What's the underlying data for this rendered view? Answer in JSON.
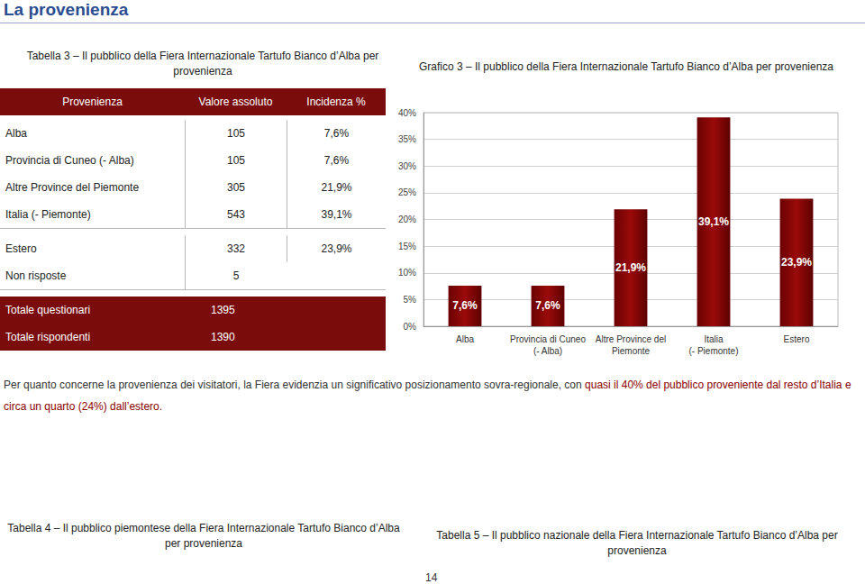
{
  "page_title": "La provenienza",
  "table_caption": "Tabella 3 – Il pubblico della Fiera Internazionale Tartufo Bianco d’Alba per provenienza",
  "table": {
    "header": [
      "Provenienza",
      "Valore assoluto",
      "Incidenza %"
    ],
    "rows": [
      [
        "Alba",
        "105",
        "7,6%"
      ],
      [
        "Provincia di Cuneo (- Alba)",
        "105",
        "7,6%"
      ],
      [
        "Altre Province del Piemonte",
        "305",
        "21,9%"
      ],
      [
        "Italia (- Piemonte)",
        "543",
        "39,1%"
      ],
      [
        "Estero",
        "332",
        "23,9%"
      ],
      [
        "Non risposte",
        "5"
      ]
    ],
    "totals": [
      [
        "Totale questionari",
        "1395"
      ],
      [
        "Totale rispondenti",
        "1390"
      ]
    ]
  },
  "chart_data": {
    "type": "bar",
    "title": "Grafico 3 – Il pubblico della Fiera Internazionale Tartufo Bianco d’Alba per provenienza",
    "categories": [
      "Alba",
      "Provincia di Cuneo\n(- Alba)",
      "Altre Province del\nPiemonte",
      "Italia\n(- Piemonte)",
      "Estero"
    ],
    "values": [
      7.6,
      7.6,
      21.9,
      39.1,
      23.9
    ],
    "value_labels": [
      "7,6%",
      "7,6%",
      "21,9%",
      "39,1%",
      "23,9%"
    ],
    "color": "#9b0a0a",
    "ylim": [
      0,
      40
    ],
    "yticks": [
      {
        "value": 0,
        "label": "0%"
      },
      {
        "value": 5,
        "label": "5%"
      },
      {
        "value": 10,
        "label": "10%"
      },
      {
        "value": 15,
        "label": "15%"
      },
      {
        "value": 20,
        "label": "20%"
      },
      {
        "value": 25,
        "label": "25%"
      },
      {
        "value": 30,
        "label": "30%"
      },
      {
        "value": 35,
        "label": "35%"
      },
      {
        "value": 40,
        "label": "40%"
      }
    ],
    "grid": true,
    "data_labels": true
  },
  "paragraph": [
    {
      "text": "Per quanto concerne la provenienza dei visitatori, la Fiera evidenzia un significativo posizionamento sovra-regionale, con ",
      "highlight": false
    },
    {
      "text": "quasi il 40% del pubblico proveniente dal resto d’Italia e circa un quarto (24%) dall’estero.",
      "highlight": true
    }
  ],
  "footer_captions": [
    "Tabella 4 – Il pubblico piemontese della Fiera Internazionale Tartufo Bianco d’Alba per provenienza",
    "Tabella 5 – Il pubblico nazionale della Fiera Internazionale Tartufo Bianco d’Alba per provenienza"
  ],
  "page_number": "14"
}
